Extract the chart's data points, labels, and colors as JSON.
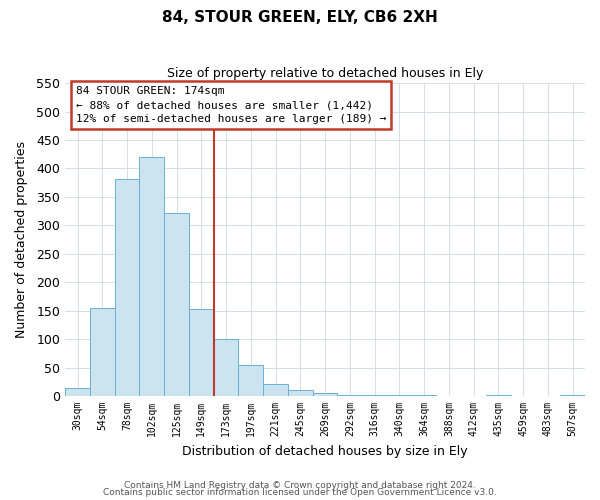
{
  "title": "84, STOUR GREEN, ELY, CB6 2XH",
  "subtitle": "Size of property relative to detached houses in Ely",
  "xlabel": "Distribution of detached houses by size in Ely",
  "ylabel": "Number of detached properties",
  "bar_color": "#cce4f0",
  "bar_edge_color": "#6aafd4",
  "categories": [
    "30sqm",
    "54sqm",
    "78sqm",
    "102sqm",
    "125sqm",
    "149sqm",
    "173sqm",
    "197sqm",
    "221sqm",
    "245sqm",
    "269sqm",
    "292sqm",
    "316sqm",
    "340sqm",
    "364sqm",
    "388sqm",
    "412sqm",
    "435sqm",
    "459sqm",
    "483sqm",
    "507sqm"
  ],
  "values": [
    15,
    155,
    382,
    420,
    322,
    153,
    100,
    55,
    21,
    10,
    5,
    2,
    2,
    1,
    1,
    0,
    0,
    1,
    0,
    0,
    1
  ],
  "ylim": [
    0,
    550
  ],
  "yticks": [
    0,
    50,
    100,
    150,
    200,
    250,
    300,
    350,
    400,
    450,
    500,
    550
  ],
  "property_line_idx": 6,
  "property_line_label": "84 STOUR GREEN: 174sqm",
  "annotation_line1": "← 88% of detached houses are smaller (1,442)",
  "annotation_line2": "12% of semi-detached houses are larger (189) →",
  "footnote1": "Contains HM Land Registry data © Crown copyright and database right 2024.",
  "footnote2": "Contains public sector information licensed under the Open Government Licence v3.0.",
  "background_color": "#ffffff",
  "grid_color": "#d0d8e0"
}
